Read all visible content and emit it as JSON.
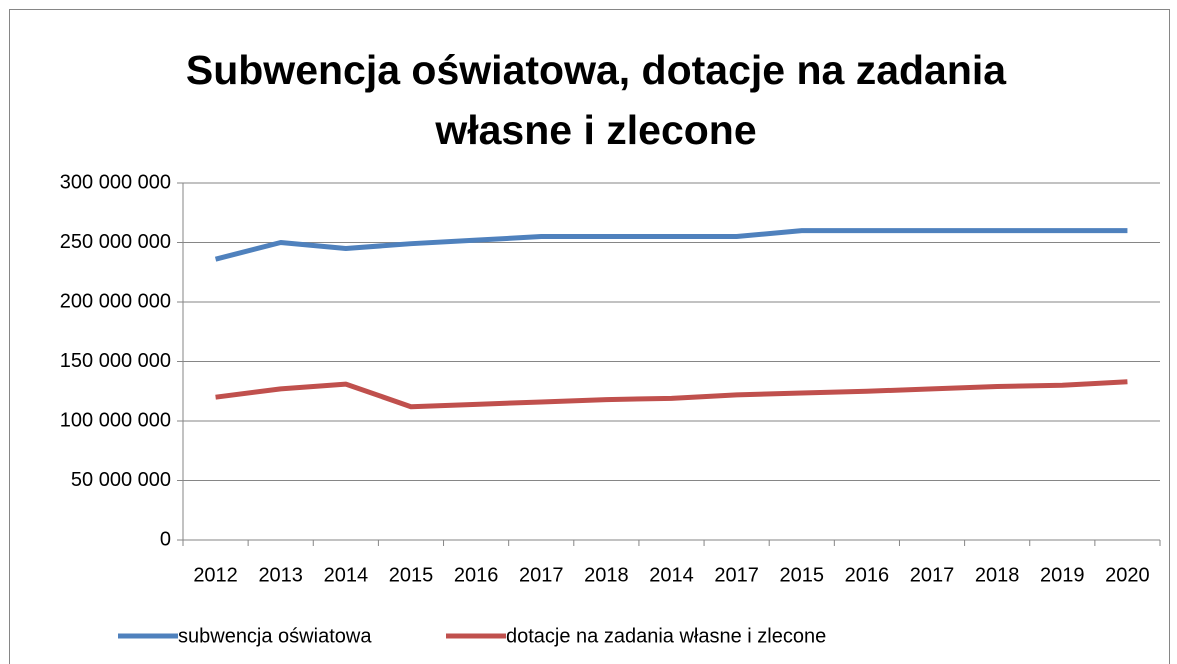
{
  "chart_data": {
    "type": "line",
    "title": "Subwencja oświatowa, dotacje na zadania własne i zlecone",
    "categories": [
      "2012",
      "2013",
      "2014",
      "2015",
      "2016",
      "2017",
      "2018",
      "2014",
      "2017",
      "2015",
      "2016",
      "2017",
      "2018",
      "2019",
      "2020"
    ],
    "series": [
      {
        "name": "subwencja oświatowa",
        "color": "#4f81bd",
        "values": [
          236000000,
          250000000,
          245000000,
          249000000,
          252000000,
          255000000,
          255000000,
          255000000,
          255000000,
          260000000,
          260000000,
          260000000,
          260000000,
          260000000,
          260000000
        ]
      },
      {
        "name": "dotacje na zadania własne i zlecone",
        "color": "#c0504d",
        "values": [
          120000000,
          127000000,
          131000000,
          112000000,
          114000000,
          116000000,
          118000000,
          119000000,
          122000000,
          123500000,
          125000000,
          127000000,
          129000000,
          130000000,
          133000000
        ]
      }
    ],
    "ylim": [
      0,
      300000000
    ],
    "yticks": [
      0,
      {
        "value": 50000000,
        "label": "50 000 000"
      },
      {
        "value": 100000000,
        "label": "100 000 000"
      },
      {
        "value": 150000000,
        "label": "150 000 000"
      },
      {
        "value": 200000000,
        "label": "200 000 000"
      },
      {
        "value": 250000000,
        "label": "250 000 000"
      },
      {
        "value": 300000000,
        "label": "300 000 000"
      }
    ],
    "grid": true,
    "legend": "bottom"
  }
}
